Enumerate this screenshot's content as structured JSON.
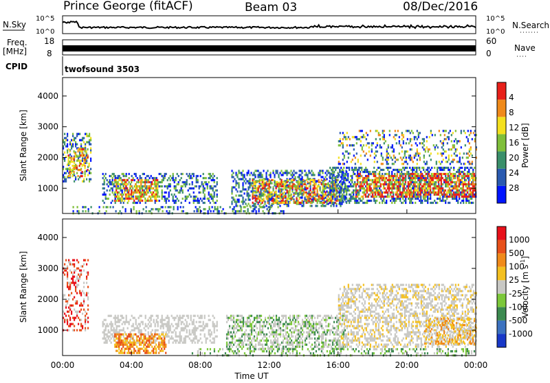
{
  "header": {
    "station": "Prince George (fitACF)",
    "beam": "Beam 03",
    "date": "08/Dec/2016"
  },
  "top_strip": {
    "nsky_label": "N.Sky",
    "nsearch_label": "N.Search",
    "nsky_ticks": [
      "10^5",
      "10^0"
    ],
    "nsearch_ticks": [
      "10^5",
      "10^0"
    ],
    "freq_label_1": "Freq.",
    "freq_label_2": "[MHz]",
    "freq_ticks": [
      "18",
      "8"
    ],
    "nave_label": "Nave",
    "nave_ticks": [
      "60",
      "0"
    ],
    "cpid_label": "CPID",
    "cpid_value": "twofsound 3503"
  },
  "chart_data": [
    {
      "type": "heatmap",
      "name": "power",
      "ylabel": "Slant Range [km]",
      "xlabel": "",
      "ylim": [
        180,
        4600
      ],
      "xlim": [
        0,
        24
      ],
      "yticks": [
        "1000",
        "2000",
        "3000",
        "4000"
      ],
      "colorbar_label": "Power [dB]",
      "colorbar_ticks": [
        "4",
        "8",
        "12",
        "16",
        "20",
        "24",
        "28"
      ],
      "colorbar_colors": [
        "#0014ff",
        "#2a5ab0",
        "#3a8f6a",
        "#7fbf3a",
        "#f4e01e",
        "#f08a1a",
        "#e8201a"
      ]
    },
    {
      "type": "heatmap",
      "name": "velocity",
      "ylabel": "Slant Range [km]",
      "xlabel": "Time UT",
      "ylim": [
        180,
        4600
      ],
      "xlim": [
        0,
        24
      ],
      "yticks": [
        "1000",
        "2000",
        "3000",
        "4000"
      ],
      "xticks": [
        "00:00",
        "04:00",
        "08:00",
        "12:00",
        "16:00",
        "20:00",
        "00:00"
      ],
      "colorbar_label": "Velocity [m s",
      "colorbar_label_sup": "-1",
      "colorbar_label_end": "]",
      "colorbar_ticks": [
        "1000",
        "500",
        "100",
        "25",
        "-25",
        "-100",
        "-500",
        "-1000"
      ],
      "colorbar_colors": [
        "#1838c8",
        "#3c72c0",
        "#3c8a50",
        "#7cc83a",
        "#c8c8c4",
        "#f4c020",
        "#f08a1a",
        "#e8501a",
        "#e8101a"
      ]
    }
  ]
}
